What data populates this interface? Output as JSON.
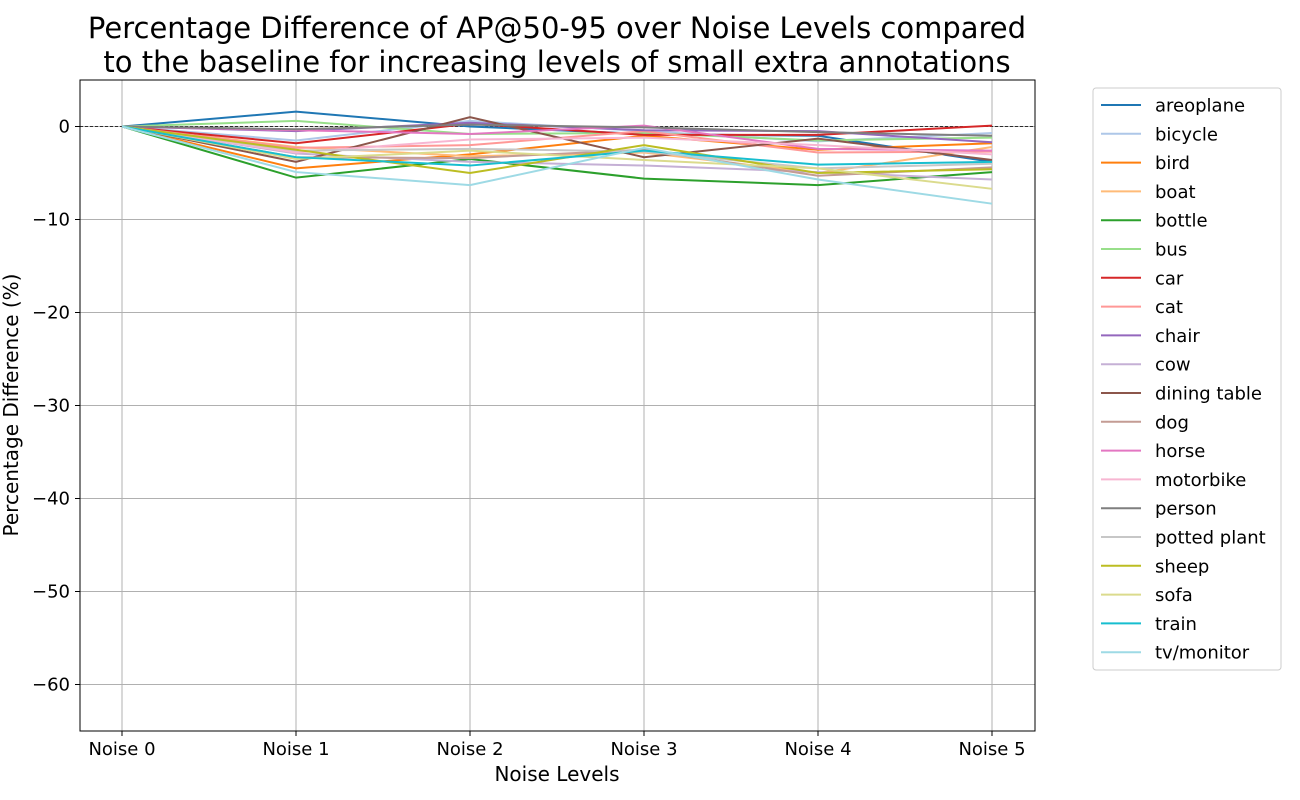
{
  "chart_data": {
    "type": "line",
    "title": "Percentage Difference of AP@50-95 over Noise Levels compared to the baseline for increasing levels of small extra annotations",
    "title_lines": [
      "Percentage Difference of AP@50-95 over Noise Levels compared",
      "to the baseline for increasing levels of small extra annotations"
    ],
    "xlabel": "Noise Levels",
    "ylabel": "Percentage Difference (%)",
    "categories": [
      "Noise 0",
      "Noise 1",
      "Noise 2",
      "Noise 3",
      "Noise 4",
      "Noise 5"
    ],
    "ylim": [
      -65,
      5
    ],
    "yticks": [
      0,
      -10,
      -20,
      -30,
      -40,
      -50,
      -60
    ],
    "ytick_labels": [
      "0",
      "−10",
      "−20",
      "−30",
      "−40",
      "−50",
      "−60"
    ],
    "grid": true,
    "reference_line": 0,
    "legend_position": "outside-right",
    "series": [
      {
        "name": "areoplane",
        "color": "#1f77b4",
        "values": [
          0,
          1.6,
          0.0,
          -0.8,
          -1.0,
          -3.8
        ]
      },
      {
        "name": "bicycle",
        "color": "#aec7e8",
        "values": [
          0,
          -1.5,
          0.6,
          -0.5,
          -1.6,
          -0.7
        ]
      },
      {
        "name": "bird",
        "color": "#ff7f0e",
        "values": [
          0,
          -4.5,
          -3.0,
          -1.0,
          -2.5,
          -1.8
        ]
      },
      {
        "name": "boat",
        "color": "#ffbb78",
        "values": [
          0,
          -2.2,
          -3.2,
          -2.8,
          -5.0,
          -2.2
        ]
      },
      {
        "name": "bottle",
        "color": "#2ca02c",
        "values": [
          0,
          -5.5,
          -3.5,
          -5.6,
          -6.3,
          -4.9
        ]
      },
      {
        "name": "bus",
        "color": "#98df8a",
        "values": [
          0,
          0.6,
          -0.8,
          -0.7,
          -1.5,
          -1.2
        ]
      },
      {
        "name": "car",
        "color": "#d62728",
        "values": [
          0,
          -1.8,
          0.3,
          -0.9,
          -0.9,
          0.1
        ]
      },
      {
        "name": "cat",
        "color": "#ff9896",
        "values": [
          0,
          -2.3,
          -2.0,
          -0.5,
          -2.8,
          -2.7
        ]
      },
      {
        "name": "chair",
        "color": "#9467bd",
        "values": [
          0,
          -0.5,
          0.4,
          -0.4,
          -0.5,
          -1.7
        ]
      },
      {
        "name": "cow",
        "color": "#c5b0d5",
        "values": [
          0,
          -2.9,
          -3.8,
          -4.2,
          -4.9,
          -5.7
        ]
      },
      {
        "name": "dining table",
        "color": "#8c564b",
        "values": [
          0,
          -3.8,
          1.0,
          -3.3,
          -1.3,
          -3.6
        ]
      },
      {
        "name": "dog",
        "color": "#c49c94",
        "values": [
          0,
          -3.3,
          -3.4,
          -2.5,
          -5.3,
          -4.4
        ]
      },
      {
        "name": "horse",
        "color": "#e377c2",
        "values": [
          0,
          -0.4,
          -0.8,
          0.1,
          -2.4,
          -2.6
        ]
      },
      {
        "name": "motorbike",
        "color": "#f7b6d2",
        "values": [
          0,
          -2.8,
          -1.4,
          -1.2,
          -2.0,
          -3.0
        ]
      },
      {
        "name": "person",
        "color": "#7f7f7f",
        "values": [
          0,
          -0.3,
          0.2,
          -0.1,
          -0.6,
          -1.0
        ]
      },
      {
        "name": "potted plant",
        "color": "#c7c7c7",
        "values": [
          0,
          -2.6,
          -2.4,
          -2.7,
          -4.5,
          -4.0
        ]
      },
      {
        "name": "sheep",
        "color": "#bcbd22",
        "values": [
          0,
          -2.5,
          -5.0,
          -2.0,
          -5.0,
          -4.6
        ]
      },
      {
        "name": "sofa",
        "color": "#dbdb8d",
        "values": [
          0,
          -3.5,
          -2.6,
          -3.6,
          -4.5,
          -6.7
        ]
      },
      {
        "name": "train",
        "color": "#17becf",
        "values": [
          0,
          -3.3,
          -4.2,
          -2.6,
          -4.1,
          -3.8
        ]
      },
      {
        "name": "tv/monitor",
        "color": "#9edae5",
        "values": [
          0,
          -4.9,
          -6.3,
          -2.3,
          -5.7,
          -8.3
        ]
      }
    ]
  }
}
